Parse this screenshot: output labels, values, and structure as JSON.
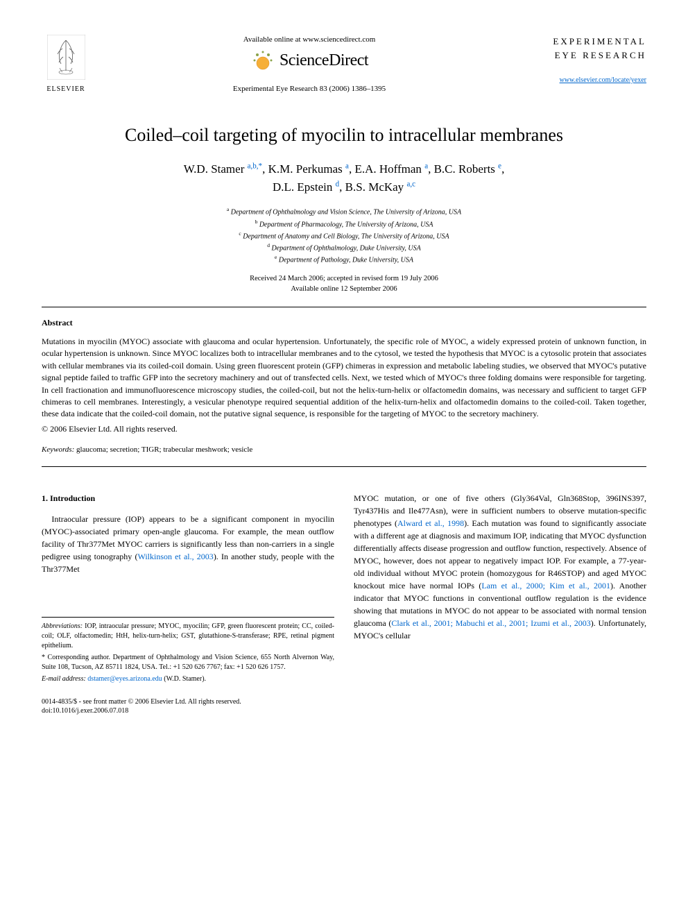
{
  "header": {
    "elsevier_label": "ELSEVIER",
    "available_online": "Available online at www.sciencedirect.com",
    "sciencedirect": "ScienceDirect",
    "journal_ref": "Experimental Eye Research 83 (2006) 1386–1395",
    "journal_name_line1": "EXPERIMENTAL",
    "journal_name_line2": "EYE RESEARCH",
    "journal_url": "www.elsevier.com/locate/yexer"
  },
  "title": "Coiled–coil targeting of myocilin to intracellular membranes",
  "authors_html": "W.D. Stamer <sup>a,b,*</sup>, K.M. Perkumas <sup>a</sup>, E.A. Hoffman <sup>a</sup>, B.C. Roberts <sup>e</sup>,<br>D.L. Epstein <sup>d</sup>, B.S. McKay <sup>a,c</sup>",
  "affiliations": [
    {
      "sup": "a",
      "text": "Department of Ophthalmology and Vision Science, The University of Arizona, USA"
    },
    {
      "sup": "b",
      "text": "Department of Pharmacology, The University of Arizona, USA"
    },
    {
      "sup": "c",
      "text": "Department of Anatomy and Cell Biology, The University of Arizona, USA"
    },
    {
      "sup": "d",
      "text": "Department of Ophthalmology, Duke University, USA"
    },
    {
      "sup": "e",
      "text": "Department of Pathology, Duke University, USA"
    }
  ],
  "dates": {
    "received": "Received 24 March 2006; accepted in revised form 19 July 2006",
    "online": "Available online 12 September 2006"
  },
  "abstract": {
    "heading": "Abstract",
    "text": "Mutations in myocilin (MYOC) associate with glaucoma and ocular hypertension. Unfortunately, the specific role of MYOC, a widely expressed protein of unknown function, in ocular hypertension is unknown. Since MYOC localizes both to intracellular membranes and to the cytosol, we tested the hypothesis that MYOC is a cytosolic protein that associates with cellular membranes via its coiled-coil domain. Using green fluorescent protein (GFP) chimeras in expression and metabolic labeling studies, we observed that MYOC's putative signal peptide failed to traffic GFP into the secretory machinery and out of transfected cells. Next, we tested which of MYOC's three folding domains were responsible for targeting. In cell fractionation and immunofluorescence microscopy studies, the coiled-coil, but not the helix-turn-helix or olfactomedin domains, was necessary and sufficient to target GFP chimeras to cell membranes. Interestingly, a vesicular phenotype required sequential addition of the helix-turn-helix and olfactomedin domains to the coiled-coil. Taken together, these data indicate that the coiled-coil domain, not the putative signal sequence, is responsible for the targeting of MYOC to the secretory machinery.",
    "copyright": "© 2006 Elsevier Ltd. All rights reserved."
  },
  "keywords": {
    "label": "Keywords:",
    "text": " glaucoma; secretion; TIGR; trabecular meshwork; vesicle"
  },
  "intro": {
    "heading": "1. Introduction",
    "col1": "Intraocular pressure (IOP) appears to be a significant component in myocilin (MYOC)-associated primary open-angle glaucoma. For example, the mean outflow facility of Thr377Met MYOC carriers is significantly less than non-carriers in a single pedigree using tonography (<span class=\"ref-link\">Wilkinson et al., 2003</span>). In another study, people with the Thr377Met",
    "col2": "MYOC mutation, or one of five others (Gly364Val, Gln368Stop, 396INS397, Tyr437His and Ile477Asn), were in sufficient numbers to observe mutation-specific phenotypes (<span class=\"ref-link\">Alward et al., 1998</span>). Each mutation was found to significantly associate with a different age at diagnosis and maximum IOP, indicating that MYOC dysfunction differentially affects disease progression and outflow function, respectively. Absence of MYOC, however, does not appear to negatively impact IOP. For example, a 77-year-old individual without MYOC protein (homozygous for R46STOP) and aged MYOC knockout mice have normal IOPs (<span class=\"ref-link\">Lam et al., 2000; Kim et al., 2001</span>). Another indicator that MYOC functions in conventional outflow regulation is the evidence showing that mutations in MYOC do not appear to be associated with normal tension glaucoma (<span class=\"ref-link\">Clark et al., 2001; Mabuchi et al., 2001; Izumi et al., 2003</span>). Unfortunately, MYOC's cellular"
  },
  "footnotes": {
    "abbrev_label": "Abbreviations:",
    "abbrev_text": " IOP, intraocular pressure; MYOC, myocilin; GFP, green fluorescent protein; CC, coiled-coil; OLF, olfactomedin; HtH, helix-turn-helix; GST, glutathione-S-transferase; RPE, retinal pigment epithelium.",
    "corr": "* Corresponding author. Department of Ophthalmology and Vision Science, 655 North Alvernon Way, Suite 108, Tucson, AZ 85711 1824, USA. Tel.: +1 520 626 7767; fax: +1 520 626 1757.",
    "email_label": "E-mail address:",
    "email": "dstamer@eyes.arizona.edu",
    "email_name": " (W.D. Stamer)."
  },
  "doi": {
    "line1": "0014-4835/$ - see front matter © 2006 Elsevier Ltd. All rights reserved.",
    "line2": "doi:10.1016/j.exer.2006.07.018"
  },
  "colors": {
    "link": "#0066cc",
    "text": "#000000",
    "bg": "#ffffff",
    "orb_fill": "#f5a623",
    "orb_dot": "#6b8e23"
  }
}
